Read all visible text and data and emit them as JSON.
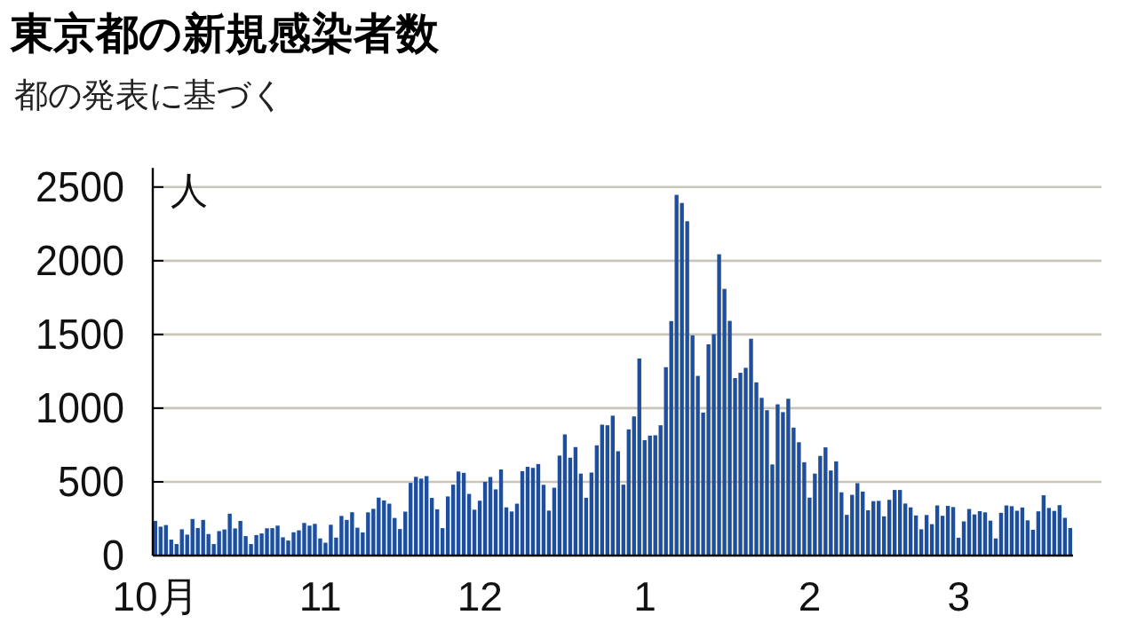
{
  "chart_data": {
    "type": "bar",
    "title": "東京都の新規感染者数",
    "subtitle": "都の発表に基づく",
    "ylabel": "人",
    "categories": [
      "10月",
      null,
      null,
      null,
      null,
      null,
      null,
      null,
      null,
      null,
      null,
      null,
      null,
      null,
      null,
      null,
      null,
      null,
      null,
      null,
      null,
      null,
      null,
      null,
      null,
      null,
      null,
      null,
      null,
      null,
      null,
      "11",
      null,
      null,
      null,
      null,
      null,
      null,
      null,
      null,
      null,
      null,
      null,
      null,
      null,
      null,
      null,
      null,
      null,
      null,
      null,
      null,
      null,
      null,
      null,
      null,
      null,
      null,
      null,
      null,
      null,
      "12",
      null,
      null,
      null,
      null,
      null,
      null,
      null,
      null,
      null,
      null,
      null,
      null,
      null,
      null,
      null,
      null,
      null,
      null,
      null,
      null,
      null,
      null,
      null,
      null,
      null,
      null,
      null,
      null,
      null,
      null,
      "1",
      null,
      null,
      null,
      null,
      null,
      null,
      null,
      null,
      null,
      null,
      null,
      null,
      null,
      null,
      null,
      null,
      null,
      null,
      null,
      null,
      null,
      null,
      null,
      null,
      null,
      null,
      null,
      null,
      null,
      null,
      "2",
      null,
      null,
      null,
      null,
      null,
      null,
      null,
      null,
      null,
      null,
      null,
      null,
      null,
      null,
      null,
      null,
      null,
      null,
      null,
      null,
      null,
      null,
      null,
      null,
      null,
      null,
      null,
      "3",
      null,
      null,
      null,
      null,
      null,
      null,
      null,
      null,
      null,
      null,
      null,
      null,
      null,
      null,
      null,
      null,
      null,
      null,
      null,
      null,
      null
    ],
    "series": [
      {
        "color": "#1d4f9e",
        "values": [
          235,
          196,
          207,
          108,
          78,
          178,
          142,
          248,
          187,
          242,
          146,
          78,
          166,
          177,
          284,
          184,
          235,
          132,
          78,
          139,
          150,
          185,
          186,
          203,
          124,
          102,
          158,
          171,
          221,
          203,
          215,
          116,
          87,
          209,
          122,
          269,
          242,
          294,
          189,
          157,
          293,
          317,
          393,
          374,
          352,
          255,
          180,
          298,
          493,
          534,
          522,
          539,
          391,
          314,
          186,
          401,
          481,
          570,
          561,
          418,
          311,
          372,
          500,
          533,
          449,
          584,
          327,
          299,
          352,
          572,
          602,
          595,
          621,
          480,
          305,
          460,
          678,
          822,
          664,
          736,
          556,
          392,
          563,
          748,
          888,
          884,
          949,
          708,
          481,
          856,
          944,
          1337,
          783,
          814,
          816,
          884,
          1278,
          1591,
          2447,
          2392,
          2268,
          1494,
          1219,
          970,
          1433,
          1502,
          2044,
          1809,
          1592,
          1204,
          1240,
          1274,
          1471,
          1175,
          1070,
          986,
          618,
          1026,
          973,
          1064,
          868,
          769,
          633,
          393,
          556,
          676,
          734,
          577,
          639,
          429,
          276,
          412,
          491,
          434,
          307,
          369,
          371,
          266,
          378,
          445,
          445,
          353,
          327,
          272,
          178,
          275,
          213,
          340,
          270,
          337,
          329,
          121,
          232,
          316,
          279,
          301,
          293,
          237,
          116,
          290,
          340,
          335,
          304,
          326,
          239,
          175,
          300,
          409,
          323,
          303,
          342,
          256,
          187
        ]
      }
    ],
    "ylim": [
      0,
      2630
    ],
    "yticks": [
      0,
      500,
      1000,
      1500,
      2000,
      2500
    ],
    "grid": "y"
  }
}
